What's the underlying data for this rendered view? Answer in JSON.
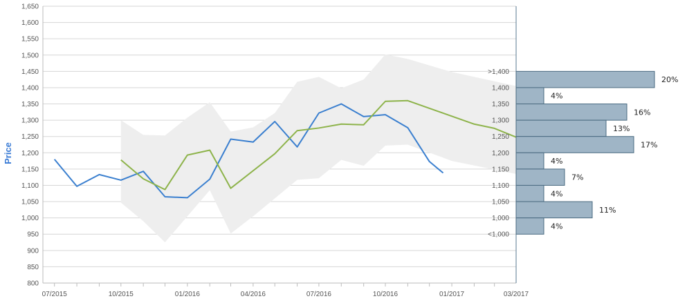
{
  "chart_data": {
    "type": "line",
    "ylabel": "Price",
    "ylim": [
      800,
      1650
    ],
    "y_ticks": [
      "800",
      "850",
      "900",
      "950",
      "1,000",
      "1,050",
      "1,100",
      "1,150",
      "1,200",
      "1,250",
      "1,300",
      "1,350",
      "1,400",
      "1,450",
      "1,500",
      "1,550",
      "1,600",
      "1,650"
    ],
    "x_tick_labels": [
      "07/2015",
      "10/2015",
      "01/2016",
      "04/2016",
      "07/2016",
      "10/2016",
      "01/2017",
      "03/2017"
    ],
    "series": [
      {
        "color": "#3a7fcf",
        "points": [
          [
            "2015-07-01",
            1180
          ],
          [
            "2015-08-01",
            1097
          ],
          [
            "2015-09-01",
            1133
          ],
          [
            "2015-10-01",
            1116
          ],
          [
            "2015-11-01",
            1143
          ],
          [
            "2015-12-01",
            1065
          ],
          [
            "2016-01-01",
            1062
          ],
          [
            "2016-02-01",
            1119
          ],
          [
            "2016-03-01",
            1242
          ],
          [
            "2016-04-01",
            1233
          ],
          [
            "2016-05-01",
            1296
          ],
          [
            "2016-06-01",
            1218
          ],
          [
            "2016-07-01",
            1322
          ],
          [
            "2016-08-01",
            1350
          ],
          [
            "2016-09-01",
            1311
          ],
          [
            "2016-10-01",
            1317
          ],
          [
            "2016-11-01",
            1277
          ],
          [
            "2016-12-01",
            1173
          ],
          [
            "2016-12-20",
            1138
          ]
        ]
      },
      {
        "color": "#8db34a",
        "points": [
          [
            "2015-10-01",
            1178
          ],
          [
            "2015-11-01",
            1120
          ],
          [
            "2015-12-01",
            1087
          ],
          [
            "2016-01-01",
            1193
          ],
          [
            "2016-02-01",
            1208
          ],
          [
            "2016-03-01",
            1091
          ],
          [
            "2016-05-01",
            1197
          ],
          [
            "2016-06-01",
            1268
          ],
          [
            "2016-07-01",
            1276
          ],
          [
            "2016-08-01",
            1288
          ],
          [
            "2016-09-01",
            1286
          ],
          [
            "2016-10-01",
            1358
          ],
          [
            "2016-11-01",
            1360
          ],
          [
            "2017-02-01",
            1288
          ],
          [
            "2017-03-01",
            1275
          ],
          [
            "2017-03-31",
            1248
          ]
        ]
      }
    ],
    "range_band": {
      "color": "#eeeeee",
      "points": [
        [
          "2015-10-01",
          1300,
          1047
        ],
        [
          "2015-11-01",
          1255,
          990
        ],
        [
          "2015-12-01",
          1253,
          925
        ],
        [
          "2016-01-01",
          1308,
          1005
        ],
        [
          "2016-02-01",
          1355,
          1085
        ],
        [
          "2016-03-01",
          1265,
          952
        ],
        [
          "2016-04-01",
          1278,
          1005
        ],
        [
          "2016-05-01",
          1322,
          1060
        ],
        [
          "2016-06-01",
          1418,
          1117
        ],
        [
          "2016-07-01",
          1433,
          1122
        ],
        [
          "2016-08-01",
          1398,
          1178
        ],
        [
          "2016-09-01",
          1425,
          1160
        ],
        [
          "2016-10-01",
          1502,
          1222
        ],
        [
          "2016-11-01",
          1488,
          1225
        ],
        [
          "2017-01-01",
          1448,
          1175
        ],
        [
          "2017-03-31",
          1405,
          1135
        ]
      ]
    },
    "distribution": {
      "color": "#9fb5c6",
      "border": "#4a6a80",
      "bins": [
        {
          "label": ">1,400",
          "upper": 1450,
          "lower": 1400,
          "percent": 20,
          "percent_label": "20%"
        },
        {
          "label": "1,400",
          "upper": 1400,
          "lower": 1350,
          "percent": 4,
          "percent_label": "4%"
        },
        {
          "label": "1,350",
          "upper": 1350,
          "lower": 1300,
          "percent": 16,
          "percent_label": "16%"
        },
        {
          "label": "1,300",
          "upper": 1300,
          "lower": 1250,
          "percent": 13,
          "percent_label": "13%"
        },
        {
          "label": "1,250",
          "upper": 1250,
          "lower": 1200,
          "percent": 17,
          "percent_label": "17%"
        },
        {
          "label": "1,200",
          "upper": 1200,
          "lower": 1150,
          "percent": 4,
          "percent_label": "4%"
        },
        {
          "label": "1,150",
          "upper": 1150,
          "lower": 1100,
          "percent": 7,
          "percent_label": "7%"
        },
        {
          "label": "1,100",
          "upper": 1100,
          "lower": 1050,
          "percent": 4,
          "percent_label": "4%"
        },
        {
          "label": "1,050",
          "upper": 1050,
          "lower": 1000,
          "percent": 11,
          "percent_label": "11%"
        },
        {
          "label": "1,000",
          "upper": 1000,
          "lower": 950,
          "percent": 4,
          "percent_label": "4%"
        },
        {
          "label": "<1,000",
          "upper": 950,
          "lower": 950,
          "percent": 0,
          "percent_label": ""
        }
      ]
    },
    "grid": true,
    "legend": "none"
  }
}
